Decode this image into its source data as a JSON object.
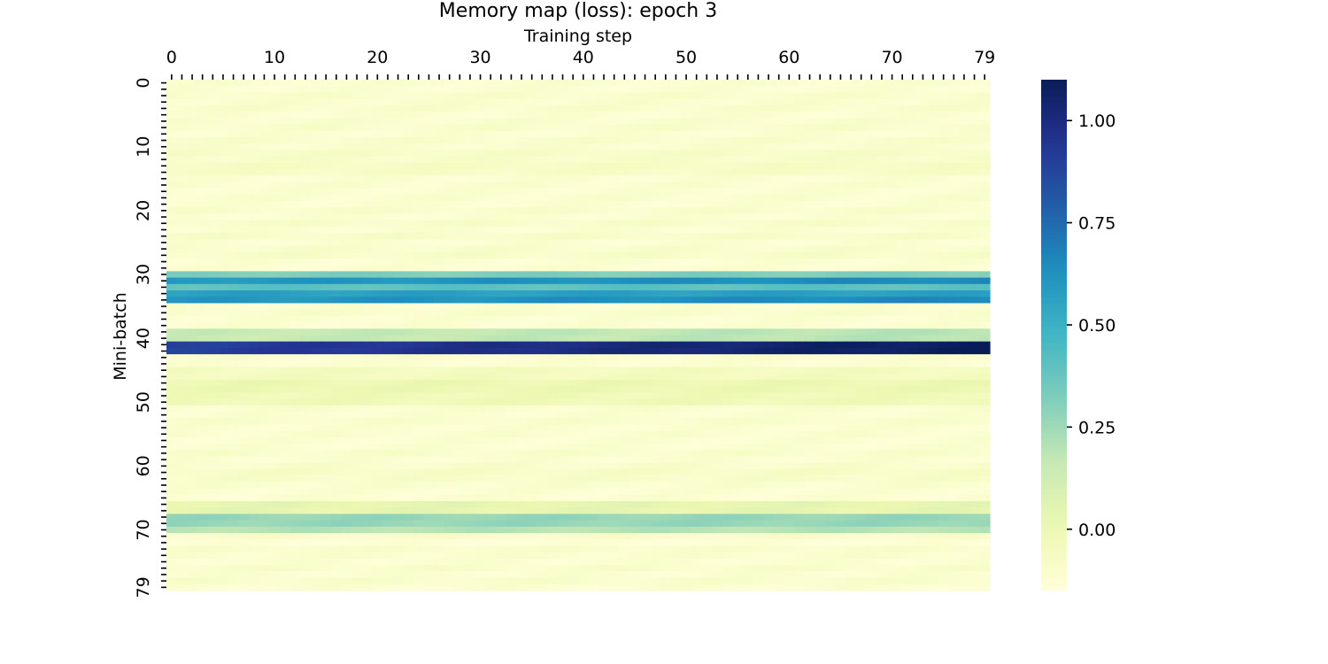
{
  "chart_data": {
    "type": "heatmap",
    "title": "Memory map (loss): epoch 3",
    "xlabel": "Training step",
    "ylabel": "Mini-batch",
    "x_ticks": [
      0,
      10,
      20,
      30,
      40,
      50,
      60,
      70,
      79
    ],
    "y_ticks": [
      0,
      10,
      20,
      30,
      40,
      50,
      60,
      70,
      79
    ],
    "n_cols": 80,
    "n_rows": 80,
    "x_axis_position": "top",
    "colormap": "YlGnBu",
    "color_range": [
      -0.15,
      1.1
    ],
    "colorbar_ticks": [
      "1.00",
      "0.75",
      "0.50",
      "0.25",
      "0.00"
    ],
    "colorbar_tick_values": [
      1.0,
      0.75,
      0.5,
      0.25,
      0.0
    ],
    "row_base_values": [
      -0.12,
      -0.12,
      -0.1,
      -0.11,
      -0.1,
      -0.12,
      -0.11,
      -0.1,
      -0.12,
      -0.1,
      -0.11,
      -0.08,
      -0.09,
      -0.07,
      -0.08,
      -0.12,
      -0.11,
      -0.12,
      -0.11,
      -0.12,
      -0.1,
      -0.12,
      -0.09,
      -0.12,
      -0.09,
      -0.12,
      -0.1,
      -0.09,
      -0.12,
      -0.12,
      0.32,
      0.6,
      0.4,
      0.57,
      0.6,
      -0.12,
      -0.1,
      -0.12,
      -0.12,
      0.15,
      0.15,
      0.97,
      0.97,
      -0.12,
      -0.12,
      -0.05,
      -0.05,
      0.0,
      0.0,
      -0.02,
      -0.02,
      -0.11,
      -0.12,
      -0.1,
      -0.12,
      -0.11,
      -0.12,
      -0.12,
      -0.1,
      -0.12,
      -0.1,
      -0.08,
      -0.09,
      -0.11,
      -0.12,
      -0.12,
      0.03,
      0.03,
      0.27,
      0.27,
      0.2,
      -0.1,
      -0.14,
      -0.1,
      -0.11,
      -0.12,
      -0.1,
      -0.12,
      -0.1,
      -0.12
    ],
    "row_trends": {
      "31": [
        0.6,
        0.66
      ],
      "34": [
        0.6,
        0.66
      ],
      "41": [
        0.9,
        1.1
      ],
      "42": [
        0.9,
        1.1
      ],
      "39": [
        0.15,
        0.2
      ],
      "40": [
        0.15,
        0.2
      ]
    }
  }
}
